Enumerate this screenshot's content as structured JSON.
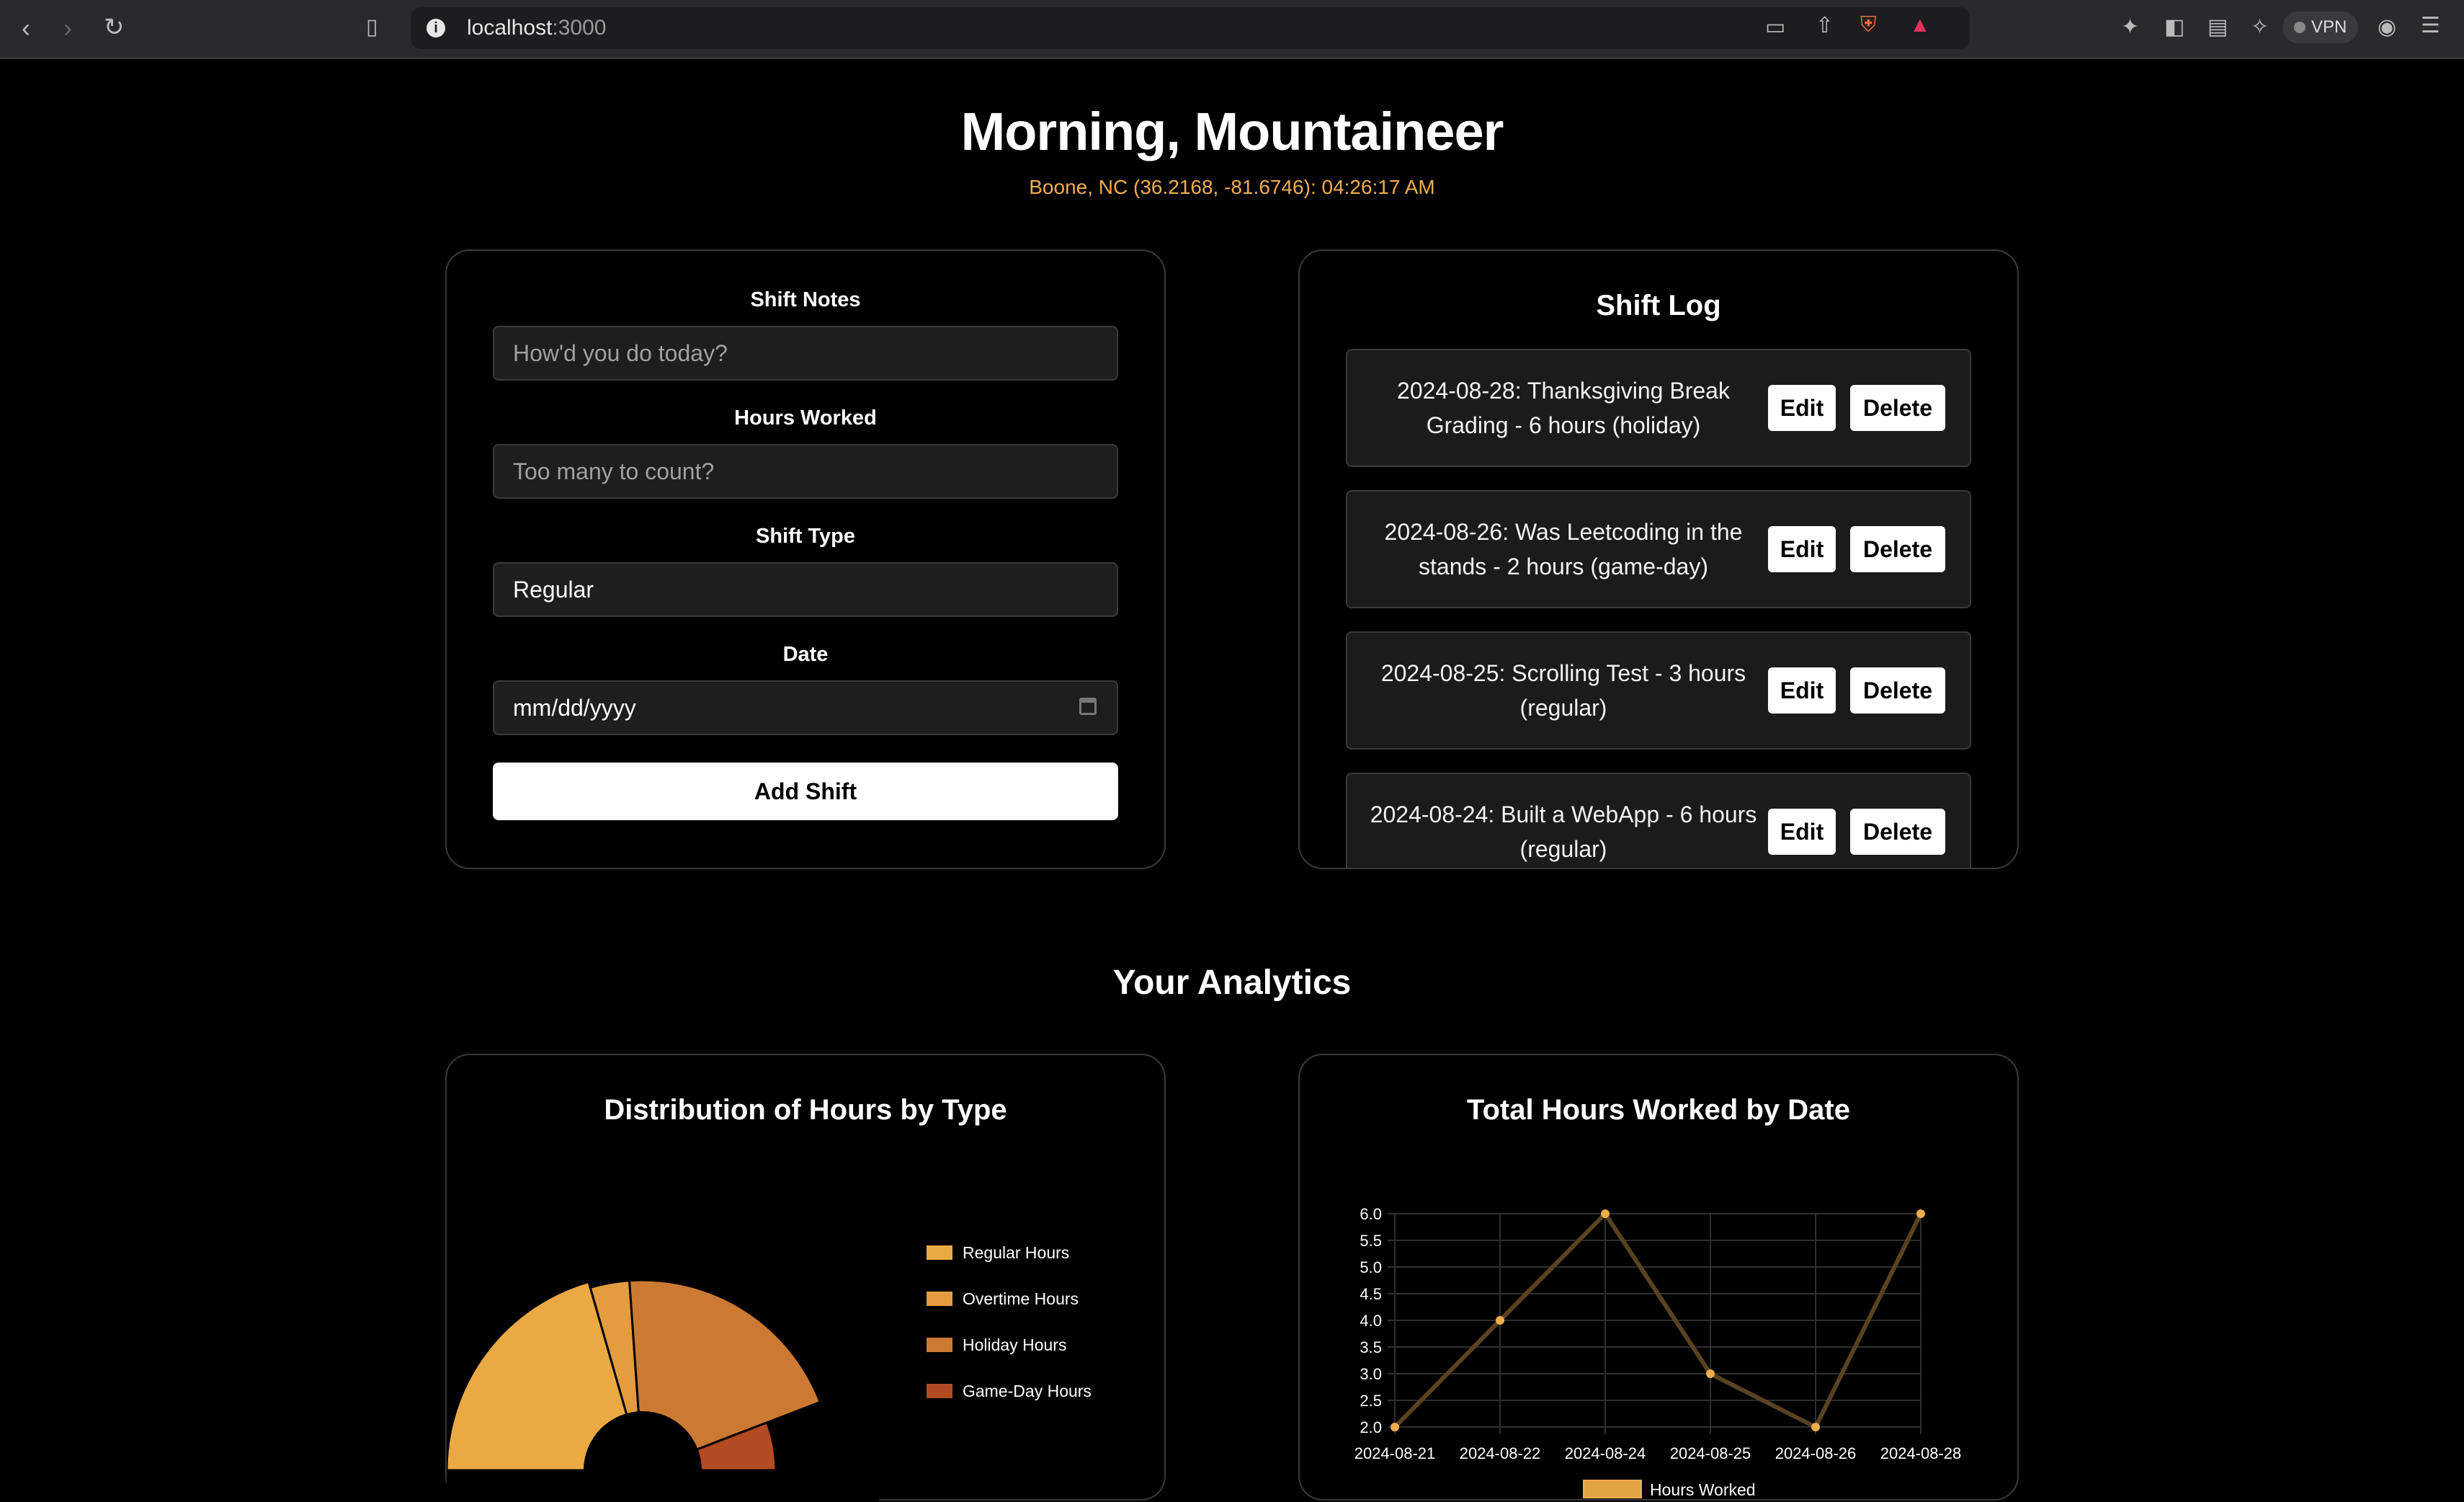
{
  "browser": {
    "url_host": "localhost",
    "url_port": ":3000",
    "vpn_label": "VPN"
  },
  "header": {
    "greeting": "Morning, Mountaineer",
    "location": "Boone, NC (36.2168, -81.6746): 04:26:17 AM"
  },
  "form": {
    "notes_label": "Shift Notes",
    "notes_placeholder": "How'd you do today?",
    "hours_label": "Hours Worked",
    "hours_placeholder": "Too many to count?",
    "type_label": "Shift Type",
    "type_value": "Regular",
    "date_label": "Date",
    "date_placeholder": "mm/dd/yyyy",
    "submit_label": "Add Shift"
  },
  "log": {
    "title": "Shift Log",
    "edit_label": "Edit",
    "delete_label": "Delete",
    "entries": [
      {
        "text": "2024-08-28: Thanksgiving Break Grading - 6 hours (holiday)"
      },
      {
        "text": "2024-08-26: Was Leetcoding in the stands - 2 hours (game-day)"
      },
      {
        "text": "2024-08-25: Scrolling Test - 3 hours (regular)"
      },
      {
        "text": "2024-08-24: Built a WebApp - 6 hours (regular)"
      }
    ]
  },
  "analytics": {
    "title": "Your Analytics"
  },
  "chart_data": [
    {
      "type": "pie",
      "variant": "polar-area-half",
      "title": "Distribution of Hours by Type",
      "legend_position": "right",
      "categories": [
        "Regular Hours",
        "Overtime Hours",
        "Holiday Hours",
        "Game-Day Hours"
      ],
      "colors": [
        "#eaa944",
        "#e59c3f",
        "#cc7a33",
        "#b24a22"
      ],
      "slices": [
        {
          "label": "Regular Hours",
          "angle_deg": 74,
          "radius_rel": 1.0
        },
        {
          "label": "Overtime Hours",
          "angle_deg": 12,
          "radius_rel": 0.97
        },
        {
          "label": "Holiday Hours",
          "angle_deg": 73,
          "radius_rel": 0.97
        },
        {
          "label": "Game-Day Hours",
          "angle_deg": 21,
          "radius_rel": 0.68
        }
      ]
    },
    {
      "type": "line",
      "title": "Total Hours Worked by Date",
      "categories": [
        "2024-08-21",
        "2024-08-22",
        "2024-08-24",
        "2024-08-25",
        "2024-08-26",
        "2024-08-28"
      ],
      "series": [
        {
          "name": "Hours Worked",
          "values": [
            2,
            4,
            6,
            3,
            2,
            6
          ],
          "color": "#f0ad4e"
        }
      ],
      "ylim": [
        2,
        6
      ],
      "yticks": [
        "2.0",
        "2.5",
        "3.0",
        "3.5",
        "4.0",
        "4.5",
        "5.0",
        "5.5",
        "6.0"
      ],
      "grid": true,
      "legend_position": "bottom"
    }
  ]
}
